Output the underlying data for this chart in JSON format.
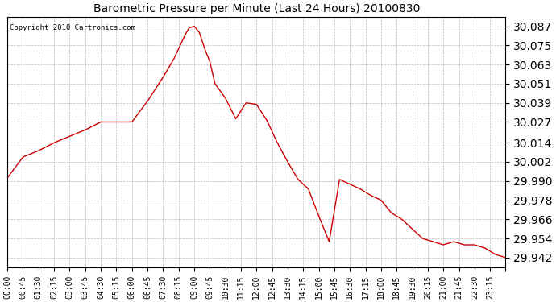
{
  "title": "Barometric Pressure per Minute (Last 24 Hours) 20100830",
  "copyright": "Copyright 2010 Cartronics.com",
  "line_color": "#cc0000",
  "background_color": "#ffffff",
  "grid_color": "#aaaaaa",
  "yticks": [
    29.942,
    29.954,
    29.966,
    29.978,
    29.99,
    30.002,
    30.014,
    30.027,
    30.039,
    30.051,
    30.063,
    30.075,
    30.087
  ],
  "ylim": [
    29.936,
    30.093
  ],
  "xtick_labels": [
    "00:00",
    "00:45",
    "01:30",
    "02:15",
    "03:00",
    "03:45",
    "04:30",
    "05:15",
    "06:00",
    "06:45",
    "07:30",
    "08:15",
    "09:00",
    "09:45",
    "10:30",
    "11:15",
    "12:00",
    "12:45",
    "13:30",
    "14:15",
    "15:00",
    "15:45",
    "16:30",
    "17:15",
    "18:00",
    "18:45",
    "19:30",
    "20:15",
    "21:00",
    "21:45",
    "22:30",
    "23:15"
  ],
  "key_times": [
    0,
    45,
    90,
    135,
    180,
    225,
    270,
    315,
    360,
    405,
    450,
    480,
    495,
    510,
    525,
    540,
    555,
    570,
    585,
    600,
    630,
    660,
    690,
    720,
    750,
    780,
    810,
    840,
    870,
    900,
    930,
    960,
    990,
    1020,
    1050,
    1080,
    1110,
    1140,
    1170,
    1200,
    1230,
    1260,
    1290,
    1320,
    1350,
    1380,
    1410,
    1440
  ],
  "key_values": [
    29.992,
    30.005,
    30.009,
    30.014,
    30.018,
    30.022,
    30.027,
    30.027,
    30.027,
    30.04,
    30.055,
    30.066,
    30.073,
    30.08,
    30.086,
    30.087,
    30.083,
    30.073,
    30.065,
    30.051,
    30.042,
    30.029,
    30.039,
    30.038,
    30.028,
    30.014,
    30.002,
    29.991,
    29.985,
    29.968,
    29.952,
    29.991,
    29.988,
    29.985,
    29.981,
    29.978,
    29.97,
    29.966,
    29.96,
    29.954,
    29.952,
    29.95,
    29.952,
    29.95,
    29.95,
    29.948,
    29.944,
    29.942
  ]
}
